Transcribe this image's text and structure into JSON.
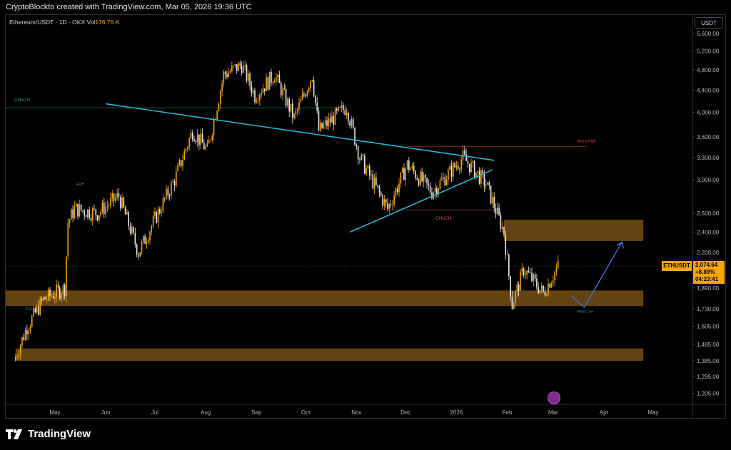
{
  "header": {
    "text": "CryptoBlockto created with TradingView.com, Mar 05, 2026 19:36 UTC"
  },
  "symbol": {
    "name": "Ethereum/USDT · 1D · OKX",
    "vol_label": "Vol",
    "vol_value": "176.76 K"
  },
  "currency_button": "USDT",
  "price_axis": {
    "labels": [
      "5,600.00",
      "5,200.00",
      "4,800.00",
      "4,400.00",
      "4,000.00",
      "3,600.00",
      "3,300.00",
      "3,000.00",
      "2,600.00",
      "2,400.00",
      "2,200.00",
      "1,890.00",
      "1,730.00",
      "1,605.00",
      "1,485.00",
      "1,385.00",
      "1,295.00",
      "1,205.00"
    ]
  },
  "time_axis": {
    "labels": [
      "May",
      "Jun",
      "Jul",
      "Aug",
      "Sep",
      "Oct",
      "Nov",
      "Dec",
      "2026",
      "Feb",
      "Mar",
      "Apr",
      "May"
    ]
  },
  "last_price": {
    "symbol": "ETHUSDT",
    "price": "2,074.64",
    "change": "+8.89%",
    "countdown": "04:23:41"
  },
  "annotations": {
    "choch_left": "CHoCH",
    "choch_mid": "CHoCH",
    "strong_high": "Strong High",
    "weak_low": "Weak Low",
    "eqh": "EQH",
    "eql": "EQL"
  },
  "colors": {
    "bull": "#f7a600",
    "bear": "#e8e8e8",
    "zone": "#6e4a12",
    "trendline": "#26b5d9",
    "projection": "#3d6fe0"
  },
  "footer": {
    "brand": "TradingView"
  },
  "chart_data": {
    "type": "candlestick",
    "symbol": "ETHUSDT",
    "exchange": "OKX",
    "timeframe": "1D",
    "y_scale": "log",
    "ylim": [
      1150,
      5900
    ],
    "x_range": [
      "2025-04",
      "2026-05"
    ],
    "segments": [
      {
        "date": "2025-04-07",
        "price": 1385
      },
      {
        "date": "2025-04-15",
        "price": 1600
      },
      {
        "date": "2025-04-25",
        "price": 1800
      },
      {
        "date": "2025-05-08",
        "price": 1890
      },
      {
        "date": "2025-05-10",
        "price": 2500
      },
      {
        "date": "2025-05-14",
        "price": 2650
      },
      {
        "date": "2025-05-28",
        "price": 2600
      },
      {
        "date": "2025-06-10",
        "price": 2800
      },
      {
        "date": "2025-06-22",
        "price": 2200
      },
      {
        "date": "2025-07-01",
        "price": 2500
      },
      {
        "date": "2025-07-14",
        "price": 3000
      },
      {
        "date": "2025-07-25",
        "price": 3700
      },
      {
        "date": "2025-08-03",
        "price": 3400
      },
      {
        "date": "2025-08-13",
        "price": 4700
      },
      {
        "date": "2025-08-24",
        "price": 4900
      },
      {
        "date": "2025-09-01",
        "price": 4300
      },
      {
        "date": "2025-09-13",
        "price": 4700
      },
      {
        "date": "2025-09-25",
        "price": 3900
      },
      {
        "date": "2025-10-06",
        "price": 4700
      },
      {
        "date": "2025-10-10",
        "price": 3700
      },
      {
        "date": "2025-10-27",
        "price": 4100
      },
      {
        "date": "2025-11-04",
        "price": 3300
      },
      {
        "date": "2025-11-21",
        "price": 2650
      },
      {
        "date": "2025-12-03",
        "price": 3200
      },
      {
        "date": "2025-12-18",
        "price": 2850
      },
      {
        "date": "2026-01-06",
        "price": 3300
      },
      {
        "date": "2026-01-20",
        "price": 2950
      },
      {
        "date": "2026-01-31",
        "price": 2400
      },
      {
        "date": "2026-02-05",
        "price": 1760
      },
      {
        "date": "2026-02-12",
        "price": 2050
      },
      {
        "date": "2026-02-24",
        "price": 1850
      },
      {
        "date": "2026-03-05",
        "price": 2074.64
      }
    ],
    "zones": [
      {
        "from": "2026-01-30",
        "to": "2026-04-25",
        "low": 2310,
        "high": 2530
      },
      {
        "from": "2025-04-01",
        "to": "2026-04-25",
        "low": 1750,
        "high": 1870
      },
      {
        "from": "2025-04-07",
        "to": "2026-04-25",
        "low": 1385,
        "high": 1460
      }
    ],
    "projection": [
      {
        "date": "2026-03-12",
        "price": 1830
      },
      {
        "date": "2026-03-20",
        "price": 1740
      },
      {
        "date": "2026-04-12",
        "price": 2300
      }
    ]
  }
}
